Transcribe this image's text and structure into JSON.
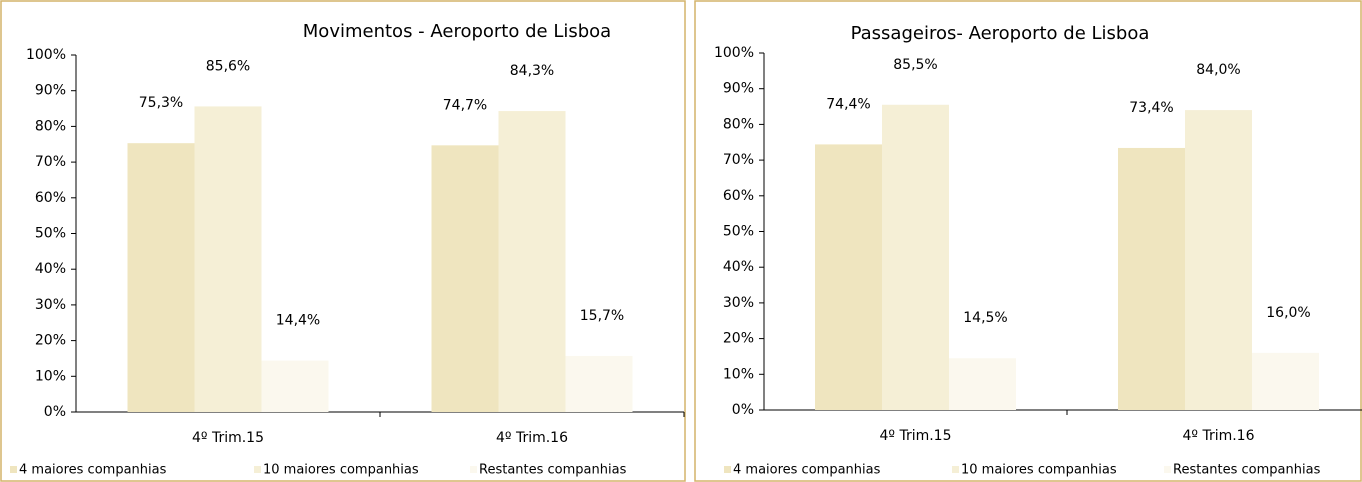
{
  "chart_data": [
    {
      "type": "bar",
      "title": "Movimentos - Aeroporto de Lisboa",
      "categories": [
        "4º Trim.15",
        "4º Trim.16"
      ],
      "series": [
        {
          "name": "4 maiores companhias",
          "color": "#efe5bf",
          "values": [
            75.3,
            74.7
          ],
          "value_labels": [
            "75,3%",
            "74,7%"
          ]
        },
        {
          "name": "10 maiores companhias",
          "color": "#f5efd6",
          "values": [
            85.6,
            84.3
          ],
          "value_labels": [
            "85,6%",
            "84,3%"
          ]
        },
        {
          "name": "Restantes companhias",
          "color": "#fbf8ee",
          "values": [
            14.4,
            15.7
          ],
          "value_labels": [
            "14,4%",
            "15,7%"
          ]
        }
      ],
      "ylim": [
        0,
        100
      ],
      "yticks": [
        {
          "value": 0,
          "label": "0%"
        },
        {
          "value": 10,
          "label": "10%"
        },
        {
          "value": 20,
          "label": "20%"
        },
        {
          "value": 30,
          "label": "30%"
        },
        {
          "value": 40,
          "label": "40%"
        },
        {
          "value": 50,
          "label": "50%"
        },
        {
          "value": 60,
          "label": "60%"
        },
        {
          "value": 70,
          "label": "70%"
        },
        {
          "value": 80,
          "label": "80%"
        },
        {
          "value": 90,
          "label": "90%"
        },
        {
          "value": 100,
          "label": "100%"
        }
      ],
      "legend": "bottom"
    },
    {
      "type": "bar",
      "title": "Passageiros- Aeroporto de Lisboa",
      "categories": [
        "4º Trim.15",
        "4º Trim.16"
      ],
      "series": [
        {
          "name": "4 maiores companhias",
          "color": "#efe5bf",
          "values": [
            74.4,
            73.4
          ],
          "value_labels": [
            "74,4%",
            "73,4%"
          ]
        },
        {
          "name": "10 maiores companhias",
          "color": "#f5efd6",
          "values": [
            85.5,
            84.0
          ],
          "value_labels": [
            "85,5%",
            "84,0%"
          ]
        },
        {
          "name": "Restantes companhias",
          "color": "#fbf8ee",
          "values": [
            14.5,
            16.0
          ],
          "value_labels": [
            "14,5%",
            "16,0%"
          ]
        }
      ],
      "ylim": [
        0,
        100
      ],
      "yticks": [
        {
          "value": 0,
          "label": "0%"
        },
        {
          "value": 10,
          "label": "10%"
        },
        {
          "value": 20,
          "label": "20%"
        },
        {
          "value": 30,
          "label": "30%"
        },
        {
          "value": 40,
          "label": "40%"
        },
        {
          "value": 50,
          "label": "50%"
        },
        {
          "value": 60,
          "label": "60%"
        },
        {
          "value": 70,
          "label": "70%"
        },
        {
          "value": 80,
          "label": "80%"
        },
        {
          "value": 90,
          "label": "90%"
        },
        {
          "value": 100,
          "label": "100%"
        }
      ],
      "legend": "bottom"
    }
  ]
}
